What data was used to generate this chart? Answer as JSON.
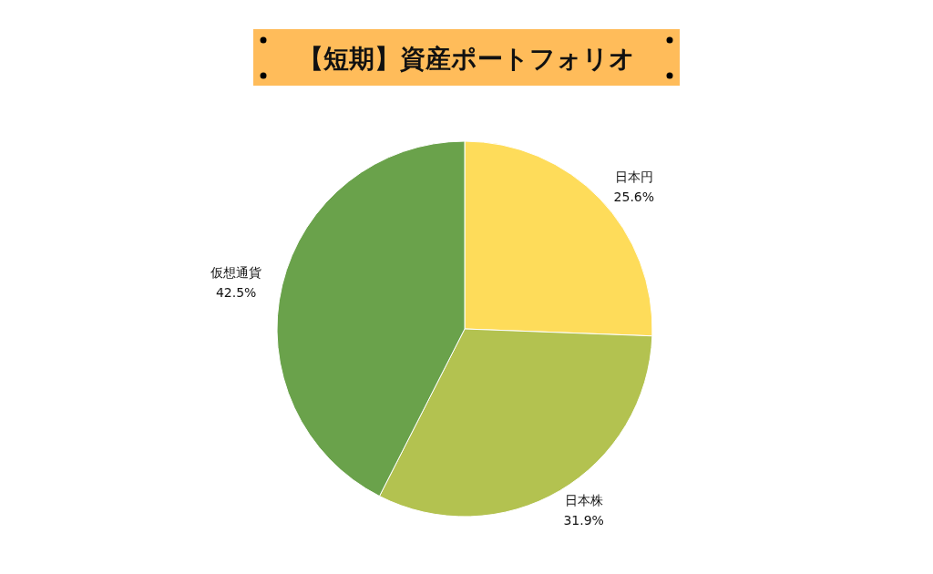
{
  "chart_data": {
    "type": "pie",
    "title": "【短期】資産ポートフォリオ",
    "categories": [
      "日本円",
      "日本株",
      "仮想通貨"
    ],
    "values": [
      25.6,
      31.9,
      42.5
    ],
    "colors": [
      "#fedc5a",
      "#b3c250",
      "#6aa24b"
    ],
    "value_labels": [
      "25.6%",
      "31.9%",
      "42.5%"
    ]
  }
}
